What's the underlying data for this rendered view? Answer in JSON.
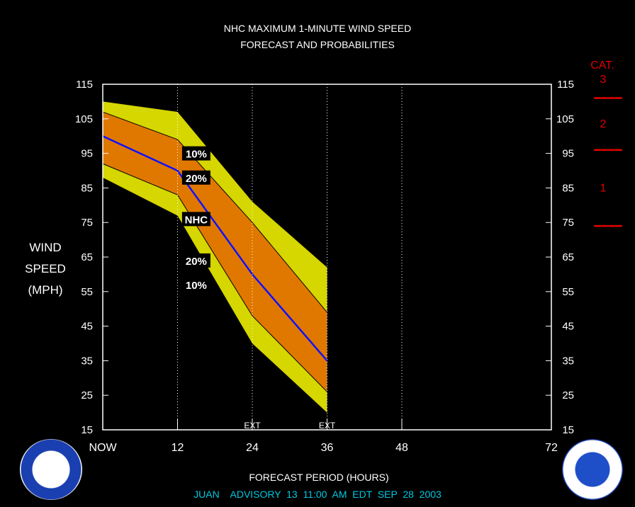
{
  "chart_data": {
    "type": "area",
    "title": "NHC MAXIMUM 1-MINUTE WIND SPEED",
    "subtitle": "FORECAST AND PROBABILITIES",
    "xlabel": "FORECAST PERIOD (HOURS)",
    "ylabel_lines": [
      "WIND",
      "SPEED",
      "(MPH)"
    ],
    "xlim": [
      0,
      72
    ],
    "ylim": [
      15,
      115
    ],
    "x_ticks": [
      0,
      12,
      24,
      36,
      48,
      72
    ],
    "x_tick_labels": [
      "NOW",
      "12",
      "24",
      "36",
      "48",
      "72"
    ],
    "y_ticks": [
      15,
      25,
      35,
      45,
      55,
      65,
      75,
      85,
      95,
      105,
      115
    ],
    "y_tick_labels": [
      "15",
      "25",
      "35",
      "45",
      "55",
      "65",
      "75",
      "85",
      "95",
      "105",
      "115"
    ],
    "vertical_gridlines": [
      12,
      24,
      36,
      48
    ],
    "x": [
      0,
      12,
      24,
      36
    ],
    "series": [
      {
        "name": "10%",
        "upper": [
          110,
          107,
          81,
          62
        ],
        "lower": [
          88,
          77,
          40,
          20
        ],
        "color": "#d6d600"
      },
      {
        "name": "20%",
        "upper": [
          107,
          99,
          75,
          49
        ],
        "lower": [
          92,
          83,
          48,
          26
        ],
        "color": "#e07800"
      },
      {
        "name": "NHC",
        "values": [
          100,
          90,
          60,
          35
        ],
        "color": "#1010ff"
      }
    ],
    "band_labels": [
      {
        "text": "10%",
        "x": 15,
        "y": 95
      },
      {
        "text": "20%",
        "x": 15,
        "y": 88
      },
      {
        "text": "NHC",
        "x": 15,
        "y": 76
      },
      {
        "text": "20%",
        "x": 15,
        "y": 64
      },
      {
        "text": "10%",
        "x": 15,
        "y": 57
      }
    ],
    "ext_markers": [
      {
        "text": "EXT",
        "x": 24
      },
      {
        "text": "EXT",
        "x": 36
      }
    ],
    "category_scale": {
      "title": "CAT.",
      "labels": [
        {
          "text": "3",
          "y": 115
        },
        {
          "text": "2",
          "y": 105
        },
        {
          "text": "1",
          "y": 85
        }
      ],
      "thresholds": [
        111,
        96,
        74
      ],
      "color": "#e00000"
    },
    "footer": "JUAN    ADVISORY  13  11:00  AM  EDT  SEP  28  2003"
  }
}
